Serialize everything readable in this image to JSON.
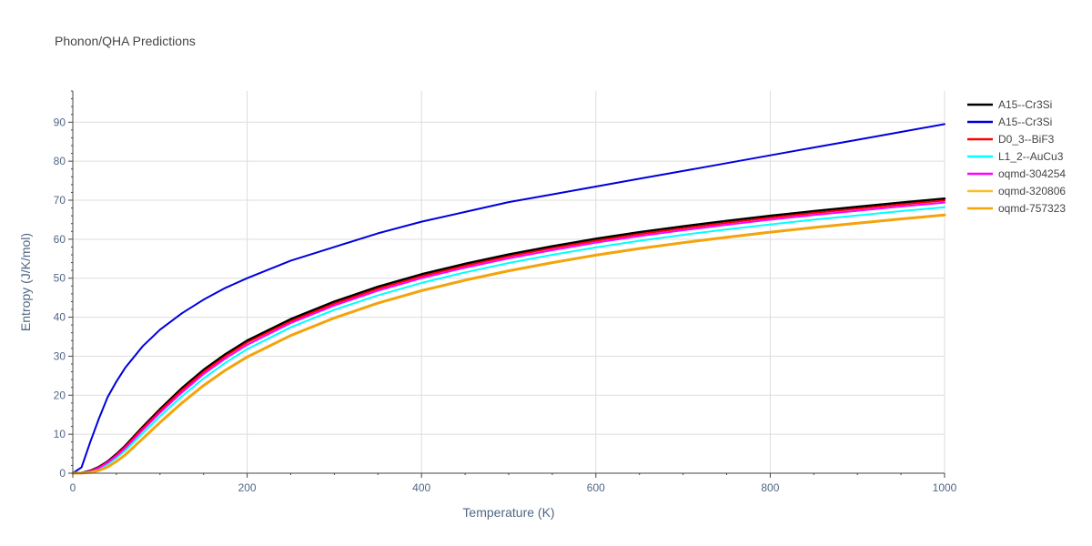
{
  "chart_data": {
    "type": "line",
    "title": "Phonon/QHA Predictions",
    "xlabel": "Temperature (K)",
    "ylabel": "Entropy (J/K/mol)",
    "xlim": [
      0,
      1000
    ],
    "ylim": [
      0,
      98
    ],
    "xticks": [
      0,
      200,
      400,
      600,
      800,
      1000
    ],
    "yticks": [
      0,
      10,
      20,
      30,
      40,
      50,
      60,
      70,
      80,
      90
    ],
    "grid": true,
    "legend_position": "top-right",
    "x": [
      0,
      10,
      20,
      30,
      40,
      50,
      60,
      80,
      100,
      125,
      150,
      175,
      200,
      250,
      300,
      350,
      400,
      450,
      500,
      550,
      600,
      650,
      700,
      750,
      800,
      850,
      900,
      950,
      1000
    ],
    "series": [
      {
        "name": "A15--Cr3Si",
        "color": "#000000",
        "values": [
          0,
          0.1,
          0.6,
          1.6,
          3.0,
          4.9,
          7.0,
          11.8,
          16.4,
          21.8,
          26.5,
          30.5,
          34.0,
          39.5,
          44.0,
          47.8,
          51.0,
          53.7,
          56.1,
          58.2,
          60.1,
          61.8,
          63.3,
          64.7,
          66.0,
          67.2,
          68.3,
          69.4,
          70.4
        ],
        "width": 2.5
      },
      {
        "name": "A15--Cr3Si",
        "color": "#0000dd",
        "values": [
          0,
          1.5,
          8.0,
          14.0,
          19.5,
          23.5,
          27.0,
          32.5,
          36.8,
          41.0,
          44.5,
          47.5,
          50.0,
          54.5,
          58.0,
          61.5,
          64.5,
          67.0,
          69.5,
          71.5,
          73.5,
          75.5,
          77.5,
          79.5,
          81.5,
          83.5,
          85.5,
          87.5,
          89.5
        ],
        "width": 2
      },
      {
        "name": "D0_3--BiF3",
        "color": "#ff0000",
        "values": [
          0,
          0.1,
          0.5,
          1.5,
          2.9,
          4.7,
          6.8,
          11.5,
          16.0,
          21.3,
          26.0,
          30.0,
          33.5,
          39.0,
          43.5,
          47.3,
          50.5,
          53.2,
          55.6,
          57.7,
          59.6,
          61.3,
          62.8,
          64.2,
          65.5,
          66.7,
          67.8,
          68.9,
          69.9
        ],
        "width": 2
      },
      {
        "name": "L1_2--AuCu3",
        "color": "#00ffff",
        "values": [
          0,
          0.05,
          0.3,
          1.1,
          2.3,
          3.9,
          5.8,
          10.2,
          14.6,
          19.7,
          24.3,
          28.3,
          31.8,
          37.4,
          41.9,
          45.6,
          48.8,
          51.5,
          53.9,
          56.0,
          57.9,
          59.6,
          61.1,
          62.5,
          63.8,
          65.0,
          66.1,
          67.2,
          68.2
        ],
        "width": 2
      },
      {
        "name": "oqmd-304254",
        "color": "#ff00ff",
        "values": [
          0,
          0.08,
          0.45,
          1.35,
          2.7,
          4.4,
          6.4,
          11.0,
          15.5,
          20.7,
          25.4,
          29.4,
          32.9,
          38.5,
          43.0,
          46.8,
          50.0,
          52.7,
          55.1,
          57.2,
          59.1,
          60.8,
          62.3,
          63.7,
          65.0,
          66.2,
          67.3,
          68.4,
          69.4
        ],
        "width": 2
      },
      {
        "name": "oqmd-320806",
        "color": "#fbbf24",
        "values": [
          0,
          0.03,
          0.2,
          0.7,
          1.6,
          3.0,
          4.7,
          8.8,
          13.0,
          18.0,
          22.5,
          26.4,
          29.8,
          35.3,
          39.8,
          43.6,
          46.8,
          49.5,
          51.9,
          54.0,
          55.9,
          57.6,
          59.1,
          60.5,
          61.8,
          63.0,
          64.1,
          65.2,
          66.2
        ],
        "width": 2
      },
      {
        "name": "oqmd-757323",
        "color": "#f4a30b",
        "values": [
          0,
          0.03,
          0.2,
          0.7,
          1.6,
          3.0,
          4.7,
          8.8,
          13.0,
          18.0,
          22.5,
          26.4,
          29.8,
          35.3,
          39.8,
          43.6,
          46.8,
          49.5,
          51.9,
          54.0,
          55.9,
          57.6,
          59.1,
          60.5,
          61.8,
          63.0,
          64.1,
          65.2,
          66.2
        ],
        "width": 3
      }
    ]
  }
}
